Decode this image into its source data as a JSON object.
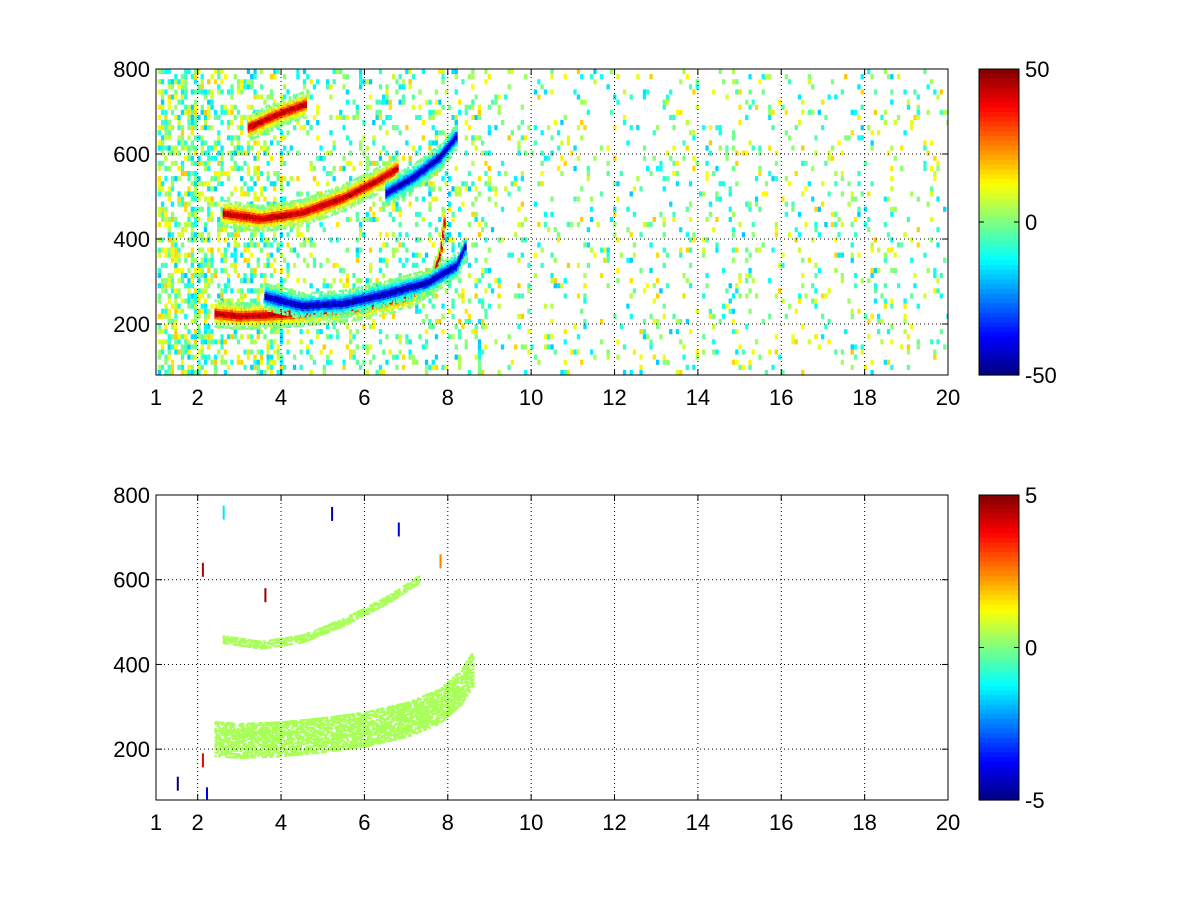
{
  "chart_data": [
    {
      "type": "heatmap",
      "title": "",
      "xlabel": "",
      "ylabel": "",
      "xlim": [
        1,
        20
      ],
      "ylim": [
        80,
        800
      ],
      "xticks": [
        1,
        2,
        4,
        6,
        8,
        10,
        12,
        14,
        16,
        18,
        20
      ],
      "yticks": [
        200,
        400,
        600,
        800
      ],
      "grid": true,
      "colormap": "jet",
      "clim": [
        -50,
        50
      ],
      "colorbar_ticks": [
        50,
        0,
        -50
      ],
      "features": [
        {
          "kind": "ridge",
          "sign": "positive",
          "points": [
            [
              2.4,
              222
            ],
            [
              3,
              216
            ],
            [
              4,
              220
            ],
            [
              5,
              228
            ],
            [
              6,
              240
            ],
            [
              7,
              262
            ],
            [
              7.6,
              300
            ],
            [
              7.8,
              360
            ],
            [
              7.9,
              440
            ]
          ]
        },
        {
          "kind": "ridge",
          "sign": "negative",
          "points": [
            [
              3.6,
              262
            ],
            [
              4.5,
              240
            ],
            [
              5.5,
              246
            ],
            [
              6.5,
              268
            ],
            [
              7.5,
              295
            ],
            [
              8.2,
              335
            ],
            [
              8.4,
              380
            ]
          ]
        },
        {
          "kind": "ridge",
          "sign": "positive",
          "points": [
            [
              2.6,
              458
            ],
            [
              3.5,
              445
            ],
            [
              4.5,
              460
            ],
            [
              5.5,
              495
            ],
            [
              6.3,
              535
            ],
            [
              6.8,
              565
            ]
          ]
        },
        {
          "kind": "ridge",
          "sign": "negative",
          "points": [
            [
              6.5,
              505
            ],
            [
              7.2,
              545
            ],
            [
              7.8,
              590
            ],
            [
              8.2,
              640
            ]
          ]
        },
        {
          "kind": "ridge",
          "sign": "positive",
          "points": [
            [
              3.2,
              660
            ],
            [
              4,
              695
            ],
            [
              4.6,
              715
            ]
          ]
        }
      ]
    },
    {
      "type": "heatmap",
      "title": "",
      "xlabel": "",
      "ylabel": "",
      "xlim": [
        1,
        20
      ],
      "ylim": [
        80,
        800
      ],
      "xticks": [
        1,
        2,
        4,
        6,
        8,
        10,
        12,
        14,
        16,
        18,
        20
      ],
      "yticks": [
        200,
        400,
        600,
        800
      ],
      "grid": true,
      "colormap": "jet",
      "clim": [
        -5,
        5
      ],
      "colorbar_ticks": [
        5,
        0,
        -5
      ],
      "features": [
        {
          "kind": "band",
          "center": [
            [
              2.4,
              222
            ],
            [
              3,
              218
            ],
            [
              4,
              222
            ],
            [
              5,
              232
            ],
            [
              6,
              245
            ],
            [
              7,
              268
            ],
            [
              7.8,
              300
            ],
            [
              8.3,
              345
            ],
            [
              8.6,
              390
            ]
          ],
          "width": 80
        },
        {
          "kind": "band",
          "center": [
            [
              2.6,
              458
            ],
            [
              3.5,
              445
            ],
            [
              4.5,
              460
            ],
            [
              5.5,
              500
            ],
            [
              6.5,
              550
            ],
            [
              7.3,
              600
            ]
          ],
          "width": 18
        },
        {
          "kind": "specks",
          "points": [
            [
              2.1,
              620
            ],
            [
              2.1,
              170
            ],
            [
              3.6,
              560
            ],
            [
              6.8,
              715
            ],
            [
              5.2,
              752
            ],
            [
              7.8,
              640
            ],
            [
              2.6,
              755
            ],
            [
              1.5,
              115
            ],
            [
              2.2,
              90
            ]
          ]
        }
      ]
    }
  ]
}
